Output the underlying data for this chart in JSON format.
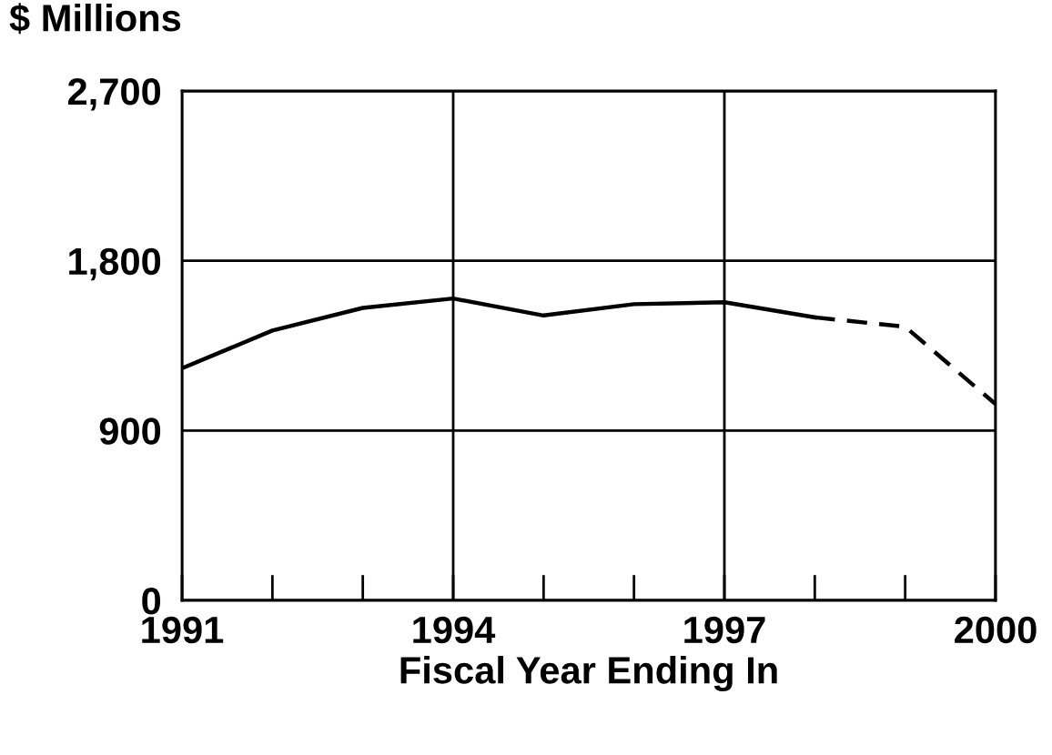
{
  "chart_data": {
    "type": "line",
    "ylabel": "$ Millions",
    "xlabel": "Fiscal Year Ending In",
    "series": [
      {
        "color": "#000000",
        "line_style": "solid",
        "x": [
          1991,
          1992,
          1993,
          1994,
          1995,
          1996,
          1997,
          1998
        ],
        "values": [
          1230,
          1430,
          1550,
          1600,
          1510,
          1570,
          1580,
          1500
        ]
      },
      {
        "color": "#000000",
        "line_style": "dashed",
        "x": [
          1998,
          1999,
          2000
        ],
        "values": [
          1500,
          1450,
          1040
        ]
      }
    ],
    "xlim": [
      1991,
      2000
    ],
    "xticks": [
      1991,
      {
        "value": 1992,
        "label": null
      },
      {
        "value": 1993,
        "label": null
      },
      1994,
      {
        "value": 1995,
        "label": null
      },
      {
        "value": 1996,
        "label": null
      },
      1997,
      {
        "value": 1998,
        "label": null
      },
      {
        "value": 1999,
        "label": null
      },
      2000
    ],
    "ylim": [
      0,
      2700
    ],
    "yticks": [
      {
        "value": 0,
        "label": "0"
      },
      {
        "value": 900,
        "label": "900"
      },
      {
        "value": 1800,
        "label": "1,800"
      },
      {
        "value": 2700,
        "label": "2,700"
      }
    ],
    "grid": true,
    "marker": "none"
  }
}
